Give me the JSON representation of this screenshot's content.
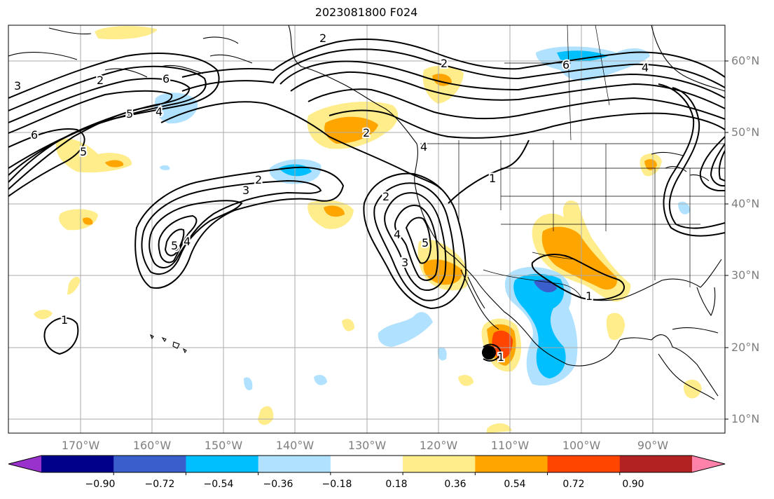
{
  "title": "2023081800 F024",
  "lat_labels": [
    "60°N",
    "50°N",
    "40°N",
    "30°N",
    "20°N",
    "10°N"
  ],
  "lon_labels": [
    "170°W",
    "160°W",
    "150°W",
    "140°W",
    "130°W",
    "120°W",
    "110°W",
    "100°W",
    "90°W"
  ],
  "colorbar": {
    "colors": [
      "#9932cc",
      "#00008b",
      "#3a5fcd",
      "#00bfff",
      "#b0e2ff",
      "#ffffff",
      "#ffec8b",
      "#ffa500",
      "#ff4500",
      "#b22222",
      "#ff82ab"
    ],
    "labels": [
      "−0.90",
      "−0.72",
      "−0.54",
      "−0.36",
      "−0.18",
      "0.18",
      "0.36",
      "0.54",
      "0.72",
      "0.90"
    ]
  },
  "contour_labels": [
    "2",
    "2",
    "3",
    "4",
    "5",
    "6",
    "6",
    "3",
    "2",
    "5",
    "2",
    "3",
    "4",
    "5",
    "2",
    "3",
    "4",
    "5",
    "1",
    "1",
    "1",
    "6",
    "4",
    "2",
    "1",
    "5",
    "4"
  ],
  "legend_colors": {
    "land_outline": "#000000",
    "grid": "#aaaaaa",
    "contour": "#000000"
  }
}
